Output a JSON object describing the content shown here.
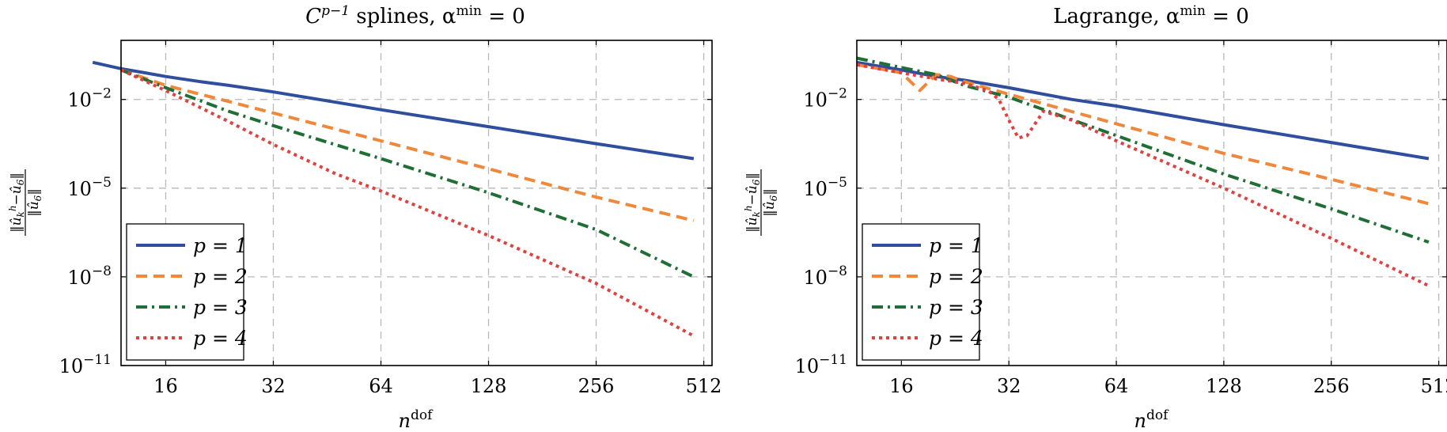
{
  "colors": {
    "p1": "#2f4f9e",
    "p2": "#f0883c",
    "p3": "#1f6e35",
    "p4": "#e0403e"
  },
  "chart_data": [
    {
      "type": "line",
      "title": "C^{p−1} splines, α^min = 0",
      "title_parts": {
        "main": "C",
        "sup1": "p−1",
        "mid": " splines, α",
        "sup2": "min",
        "tail": " = 0"
      },
      "xlabel": {
        "base": "n",
        "sup": "dof"
      },
      "ylabel": "‖û_k^h − û_6‖ / ‖û_6‖",
      "ylabel_parts": {
        "num": "‖û",
        "num_sub": "k",
        "num_sup": "h",
        "num_tail": "−û",
        "num_sub2": "6",
        "num_end": "‖",
        "den": "‖û",
        "den_sub": "6",
        "den_end": "‖"
      },
      "xscale": "log2",
      "yscale": "log10",
      "xlim": [
        12,
        540
      ],
      "ylim": [
        1e-11,
        1
      ],
      "xticks": [
        "16",
        "32",
        "64",
        "128",
        "256",
        "512"
      ],
      "xtick_values": [
        16,
        32,
        64,
        128,
        256,
        512
      ],
      "yticks": [
        {
          "base": "10",
          "exp": "−2",
          "value": 0.01
        },
        {
          "base": "10",
          "exp": "−5",
          "value": 1e-05
        },
        {
          "base": "10",
          "exp": "−8",
          "value": 1e-08
        },
        {
          "base": "10",
          "exp": "−11",
          "value": 1e-11
        }
      ],
      "grid": true,
      "legend_position": "bottom-left",
      "series": [
        {
          "name": "p = 1",
          "label": "p = 1",
          "color_key": "p1",
          "dash": "",
          "x": [
            10,
            12,
            14,
            16,
            20,
            24,
            32,
            48,
            64,
            128,
            256,
            480
          ],
          "y": [
            0.18,
            0.11,
            0.08,
            0.06,
            0.04,
            0.03,
            0.018,
            0.008,
            0.0045,
            0.0012,
            0.00032,
            0.0001
          ]
        },
        {
          "name": "p = 2",
          "label": "p = 2",
          "color_key": "p2",
          "dash": "14 8",
          "x": [
            12,
            16,
            32,
            64,
            128,
            256,
            480
          ],
          "y": [
            0.1,
            0.03,
            0.0035,
            0.0004,
            4.5e-05,
            5e-06,
            8e-07
          ]
        },
        {
          "name": "p = 3",
          "label": "p = 3",
          "color_key": "p3",
          "dash": "14 6 3 6",
          "x": [
            12,
            16,
            24,
            32,
            64,
            128,
            256,
            480
          ],
          "y": [
            0.1,
            0.025,
            0.004,
            0.0013,
            0.0001,
            7e-06,
            4e-07,
            1e-08
          ]
        },
        {
          "name": "p = 4",
          "label": "p = 4",
          "color_key": "p4",
          "dash": "4 5",
          "x": [
            12,
            16,
            24,
            32,
            48,
            64,
            128,
            256,
            480
          ],
          "y": [
            0.1,
            0.02,
            0.0018,
            0.0003,
            3e-05,
            8e-06,
            2.5e-07,
            6e-09,
            1e-10
          ]
        }
      ]
    },
    {
      "type": "line",
      "title": "Lagrange, α^min = 0",
      "title_parts": {
        "main": "Lagrange, α",
        "sup": "min",
        "tail": " = 0"
      },
      "xlabel": {
        "base": "n",
        "sup": "dof"
      },
      "ylabel": "‖û_k^h − û_6‖ / ‖û_6‖",
      "ylabel_parts": {
        "num": "‖û",
        "num_sub": "k",
        "num_sup": "h",
        "num_tail": "−û",
        "num_sub2": "6",
        "num_end": "‖",
        "den": "‖û",
        "den_sub": "6",
        "den_end": "‖"
      },
      "xscale": "log2",
      "yscale": "log10",
      "xlim": [
        12,
        540
      ],
      "ylim": [
        1e-11,
        1
      ],
      "xticks": [
        "16",
        "32",
        "64",
        "128",
        "256",
        "512"
      ],
      "xtick_values": [
        16,
        32,
        64,
        128,
        256,
        512
      ],
      "yticks": [
        {
          "base": "10",
          "exp": "−2",
          "value": 0.01
        },
        {
          "base": "10",
          "exp": "−5",
          "value": 1e-05
        },
        {
          "base": "10",
          "exp": "−8",
          "value": 1e-08
        },
        {
          "base": "10",
          "exp": "−11",
          "value": 1e-11
        }
      ],
      "grid": true,
      "legend_position": "bottom-left",
      "series": [
        {
          "name": "p = 1",
          "label": "p = 1",
          "color_key": "p1",
          "dash": "",
          "x": [
            12,
            14,
            16,
            20,
            24,
            32,
            48,
            64,
            128,
            256,
            480
          ],
          "y": [
            0.18,
            0.13,
            0.1,
            0.06,
            0.045,
            0.025,
            0.01,
            0.006,
            0.0014,
            0.00035,
            0.0001
          ]
        },
        {
          "name": "p = 2",
          "label": "p = 2",
          "color_key": "p2",
          "dash": "14 8",
          "x": [
            12,
            16,
            18,
            20,
            22,
            24,
            32,
            64,
            128,
            256,
            480
          ],
          "y": [
            0.15,
            0.08,
            0.02,
            0.07,
            0.06,
            0.04,
            0.015,
            0.0015,
            0.00015,
            2e-05,
            3e-06
          ]
        },
        {
          "name": "p = 3",
          "label": "p = 3",
          "color_key": "p3",
          "dash": "14 6 3 6",
          "x": [
            12,
            16,
            20,
            24,
            32,
            64,
            128,
            256,
            480
          ],
          "y": [
            0.25,
            0.12,
            0.07,
            0.03,
            0.012,
            0.0006,
            3e-05,
            2e-06,
            1.5e-07
          ]
        },
        {
          "name": "p = 4",
          "label": "p = 4",
          "color_key": "p4",
          "dash": "4 5",
          "x": [
            12,
            16,
            20,
            24,
            28,
            30,
            32,
            34,
            36,
            40,
            48,
            64,
            128,
            256,
            480
          ],
          "y": [
            0.15,
            0.08,
            0.05,
            0.035,
            0.02,
            0.01,
            0.002,
            0.0005,
            0.0006,
            0.004,
            0.002,
            0.0004,
            1e-05,
            2e-07,
            5e-09
          ]
        }
      ]
    }
  ]
}
